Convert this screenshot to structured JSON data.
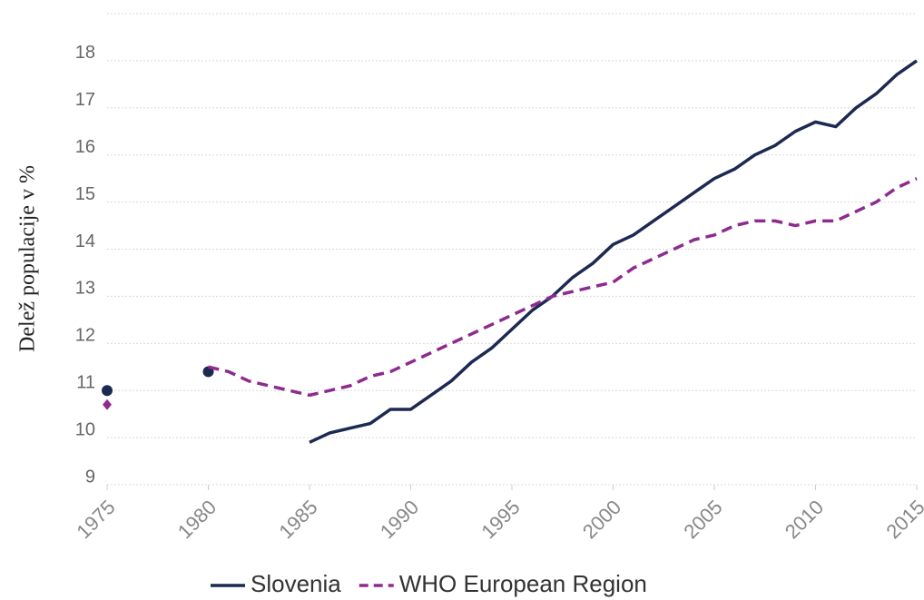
{
  "chart_data": {
    "type": "line",
    "y_label": "Delež populacije  v %",
    "x": [
      1975,
      1976,
      1977,
      1978,
      1979,
      1980,
      1981,
      1982,
      1983,
      1984,
      1985,
      1986,
      1987,
      1988,
      1989,
      1990,
      1991,
      1992,
      1993,
      1994,
      1995,
      1996,
      1997,
      1998,
      1999,
      2000,
      2001,
      2002,
      2003,
      2004,
      2005,
      2006,
      2007,
      2008,
      2009,
      2010,
      2011,
      2012,
      2013,
      2014,
      2015
    ],
    "series": [
      {
        "name": "Slovenia",
        "color": "#1c2951",
        "dash": false,
        "marker": "circle",
        "values": [
          11.0,
          null,
          null,
          null,
          null,
          11.4,
          null,
          null,
          null,
          null,
          9.9,
          10.1,
          10.2,
          10.3,
          10.6,
          10.6,
          10.9,
          11.2,
          11.6,
          11.9,
          12.3,
          12.7,
          13.0,
          13.4,
          13.7,
          14.1,
          14.3,
          14.6,
          14.9,
          15.2,
          15.5,
          15.7,
          16.0,
          16.2,
          16.5,
          16.7,
          16.6,
          17.0,
          17.3,
          17.7,
          18.0
        ]
      },
      {
        "name": "WHO European Region",
        "color": "#8e2b8e",
        "dash": true,
        "marker": "diamond",
        "values": [
          10.7,
          null,
          null,
          null,
          null,
          11.5,
          11.4,
          11.2,
          11.1,
          11.0,
          10.9,
          11.0,
          11.1,
          11.3,
          11.4,
          11.6,
          11.8,
          12.0,
          12.2,
          12.4,
          12.6,
          12.8,
          13.0,
          13.1,
          13.2,
          13.3,
          13.6,
          13.8,
          14.0,
          14.2,
          14.3,
          14.5,
          14.6,
          14.6,
          14.5,
          14.6,
          14.6,
          14.8,
          15.0,
          15.3,
          15.5
        ]
      }
    ],
    "xlim": [
      1975,
      2015
    ],
    "xticks": [
      1975,
      1980,
      1985,
      1990,
      1995,
      2000,
      2005,
      2010,
      2015
    ],
    "ylim": [
      9,
      19
    ],
    "yticks": [
      9,
      10,
      11,
      12,
      13,
      14,
      15,
      16,
      17,
      18
    ],
    "grid": true,
    "legend": "bottom"
  }
}
